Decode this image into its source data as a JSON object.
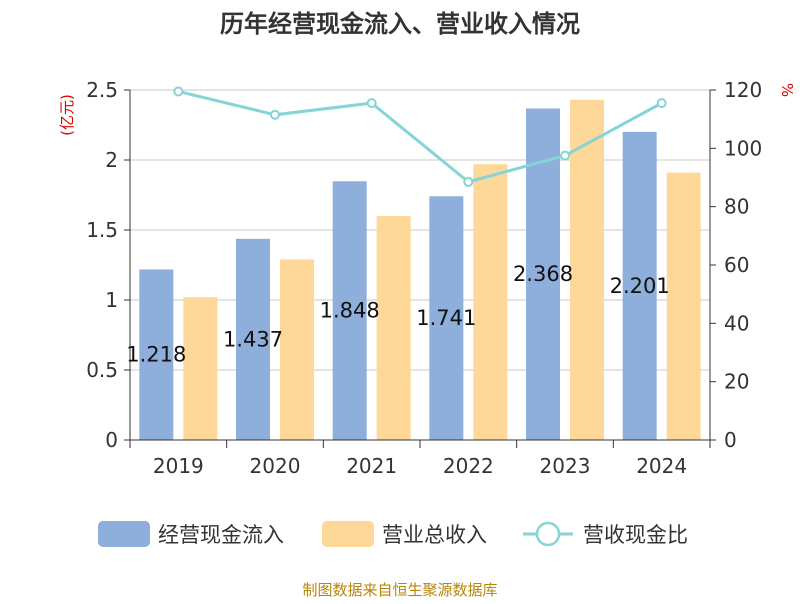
{
  "title": "历年经营现金流入、营业收入情况",
  "left_unit": "(亿元)",
  "right_unit": "%",
  "source": "制图数据来自恒生聚源数据库",
  "colors": {
    "cash_inflow": "#8eaedb",
    "revenue": "#fdd898",
    "ratio": "#86d4d7"
  },
  "chart_data": {
    "type": "bar",
    "categories": [
      "2019",
      "2020",
      "2021",
      "2022",
      "2023",
      "2024"
    ],
    "series": [
      {
        "name": "经营现金流入",
        "type": "bar",
        "axis": "left",
        "values": [
          1.218,
          1.437,
          1.848,
          1.741,
          2.368,
          2.201
        ],
        "labels": [
          "1.218",
          "1.437",
          "1.848",
          "1.741",
          "2.368",
          "2.201"
        ]
      },
      {
        "name": "营业总收入",
        "type": "bar",
        "axis": "left",
        "values": [
          1.02,
          1.29,
          1.6,
          1.97,
          2.43,
          1.91
        ]
      },
      {
        "name": "营收现金比",
        "type": "line",
        "axis": "right",
        "values": [
          119.5,
          111.5,
          115.5,
          88.5,
          97.5,
          115.5
        ]
      }
    ],
    "ylim": [
      0,
      2.5
    ],
    "yticks": [
      "0",
      "0.5",
      "1",
      "1.5",
      "2",
      "2.5"
    ],
    "y2lim": [
      0,
      120
    ],
    "y2ticks": [
      "0",
      "20",
      "40",
      "60",
      "80",
      "100",
      "120"
    ],
    "grid": true,
    "legend": "bottom"
  }
}
